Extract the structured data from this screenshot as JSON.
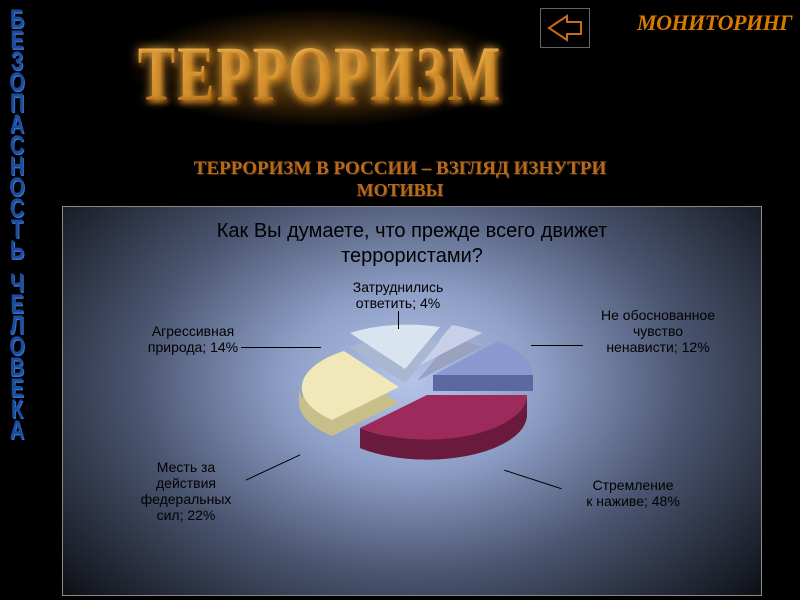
{
  "sidebar_text": "БЕЗОПАСНОСТЬ ЧЕЛОВЕКА",
  "top_right": "МОНИТОРИНГ",
  "title": "ТЕРРОРИЗМ",
  "subtitle_line1": "ТЕРРОРИЗМ В РОССИИ – ВЗГЛЯД ИЗНУТРИ",
  "subtitle_line2": "МОТИВЫ",
  "chart": {
    "type": "pie3d_exploded",
    "question": "Как Вы думаете, что прежде всего движет террористами?",
    "background_gradient": [
      "#b5c3e8",
      "#8fa0c8",
      "#4a5570",
      "#1a1e28",
      "#000000"
    ],
    "slices": [
      {
        "label": "Стремление к наживе",
        "value": 48,
        "display": "Стремление\nк наживе; 48%",
        "color_top": "#9c2a5a",
        "color_side": "#6a1b3d"
      },
      {
        "label": "Не обоснованное чувство ненависти",
        "value": 12,
        "display": "Не обоснованное\nчувство\nненависти; 12%",
        "color_top": "#8a9ad0",
        "color_side": "#5a6aa0"
      },
      {
        "label": "Затруднились ответить",
        "value": 4,
        "display": "Затруднились\nответить; 4%",
        "color_top": "#c8cfe8",
        "color_side": "#9aa2c0"
      },
      {
        "label": "Агрессивная природа",
        "value": 14,
        "display": "Агрессивная\nприрода; 14%",
        "color_top": "#d8e4f0",
        "color_side": "#a8b8d0"
      },
      {
        "label": "Месть за действия федеральных сил",
        "value": 22,
        "display": "Месть за\nдействия\nфедеральных\nсил; 22%",
        "color_top": "#f0e8b8",
        "color_side": "#c8be8a"
      }
    ],
    "label_fontsize": 14,
    "question_fontsize": 20,
    "question_color": "#000000"
  },
  "back_arrow_color": "#c86a1a",
  "title_gradient": [
    "#f8d080",
    "#d98820",
    "#7a3d00"
  ],
  "subtitle_color": "#b86a1a"
}
